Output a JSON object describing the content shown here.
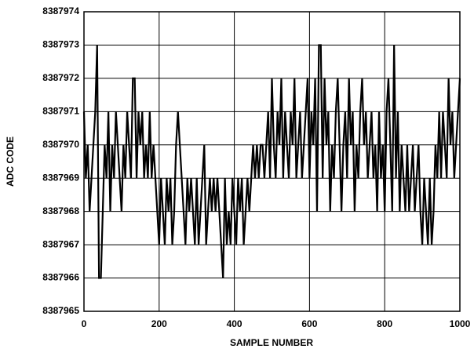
{
  "chart_data": {
    "type": "line",
    "xlabel": "SAMPLE NUMBER",
    "ylabel": "ADC CODE",
    "xlim": [
      0,
      1000
    ],
    "xticks": [
      0,
      200,
      400,
      600,
      800,
      1000
    ],
    "ylim": [
      8387965,
      8387974
    ],
    "yticks": [
      8387965,
      8387966,
      8387967,
      8387968,
      8387969,
      8387970,
      8387971,
      8387972,
      8387973,
      8387974
    ],
    "grid": true,
    "color": "#000000",
    "x": [
      0,
      5,
      10,
      15,
      20,
      25,
      30,
      35,
      40,
      45,
      50,
      55,
      60,
      65,
      70,
      75,
      80,
      85,
      90,
      95,
      100,
      105,
      110,
      115,
      120,
      125,
      130,
      135,
      140,
      145,
      150,
      155,
      160,
      165,
      170,
      175,
      180,
      185,
      190,
      195,
      200,
      205,
      210,
      215,
      220,
      225,
      230,
      235,
      240,
      245,
      250,
      255,
      260,
      265,
      270,
      275,
      280,
      285,
      290,
      295,
      300,
      305,
      310,
      315,
      320,
      325,
      330,
      335,
      340,
      345,
      350,
      355,
      360,
      365,
      370,
      375,
      380,
      385,
      390,
      395,
      400,
      405,
      410,
      415,
      420,
      425,
      430,
      435,
      440,
      445,
      450,
      455,
      460,
      465,
      470,
      475,
      480,
      485,
      490,
      495,
      500,
      505,
      510,
      515,
      520,
      525,
      530,
      535,
      540,
      545,
      550,
      555,
      560,
      565,
      570,
      575,
      580,
      585,
      590,
      595,
      600,
      605,
      610,
      615,
      620,
      625,
      630,
      635,
      640,
      645,
      650,
      655,
      660,
      665,
      670,
      675,
      680,
      685,
      690,
      695,
      700,
      705,
      710,
      715,
      720,
      725,
      730,
      735,
      740,
      745,
      750,
      755,
      760,
      765,
      770,
      775,
      780,
      785,
      790,
      795,
      800,
      805,
      810,
      815,
      820,
      825,
      830,
      835,
      840,
      845,
      850,
      855,
      860,
      865,
      870,
      875,
      880,
      885,
      890,
      895,
      900,
      905,
      910,
      915,
      920,
      925,
      930,
      935,
      940,
      945,
      950,
      955,
      960,
      965,
      970,
      975,
      980,
      985,
      990,
      995,
      1000
    ],
    "values": [
      8387971,
      8387969,
      8387970,
      8387968,
      8387969,
      8387970,
      8387971,
      8387973,
      8387966,
      8387966,
      8387968,
      8387970,
      8387969,
      8387971,
      8387968,
      8387970,
      8387969,
      8387971,
      8387970,
      8387969,
      8387968,
      8387970,
      8387969,
      8387971,
      8387970,
      8387969,
      8387972,
      8387972,
      8387969,
      8387971,
      8387970,
      8387971,
      8387969,
      8387970,
      8387969,
      8387971,
      8387969,
      8387970,
      8387969,
      8387968,
      8387967,
      8387969,
      8387968,
      8387967,
      8387969,
      8387968,
      8387969,
      8387967,
      8387968,
      8387970,
      8387971,
      8387970,
      8387969,
      8387968,
      8387967,
      8387969,
      8387968,
      8387969,
      8387968,
      8387967,
      8387969,
      8387967,
      8387968,
      8387969,
      8387970,
      8387967,
      8387968,
      8387969,
      8387968,
      8387969,
      8387968,
      8387969,
      8387968,
      8387967,
      8387966,
      8387969,
      8387967,
      8387968,
      8387967,
      8387969,
      8387968,
      8387967,
      8387969,
      8387968,
      8387969,
      8387967,
      8387968,
      8387969,
      8387968,
      8387969,
      8387970,
      8387969,
      8387970,
      8387969,
      8387970,
      8387970,
      8387969,
      8387970,
      8387971,
      8387969,
      8387972,
      8387970,
      8387969,
      8387971,
      8387970,
      8387972,
      8387969,
      8387971,
      8387970,
      8387969,
      8387971,
      8387970,
      8387972,
      8387969,
      8387970,
      8387971,
      8387969,
      8387970,
      8387971,
      8387972,
      8387969,
      8387971,
      8387970,
      8387972,
      8387968,
      8387973,
      8387973,
      8387969,
      8387972,
      8387970,
      8387971,
      8387968,
      8387970,
      8387969,
      8387971,
      8387972,
      8387970,
      8387968,
      8387970,
      8387971,
      8387969,
      8387972,
      8387970,
      8387971,
      8387968,
      8387970,
      8387969,
      8387971,
      8387972,
      8387970,
      8387971,
      8387969,
      8387970,
      8387971,
      8387969,
      8387970,
      8387968,
      8387971,
      8387969,
      8387970,
      8387968,
      8387971,
      8387972,
      8387970,
      8387968,
      8387973,
      8387969,
      8387971,
      8387968,
      8387970,
      8387969,
      8387968,
      8387970,
      8387968,
      8387969,
      8387970,
      8387968,
      8387969,
      8387970,
      8387968,
      8387967,
      8387969,
      8387968,
      8387967,
      8387969,
      8387967,
      8387968,
      8387970,
      8387969,
      8387971,
      8387969,
      8387971,
      8387970,
      8387969,
      8387972,
      8387970,
      8387971,
      8387969,
      8387970,
      8387971,
      8387972
    ]
  }
}
